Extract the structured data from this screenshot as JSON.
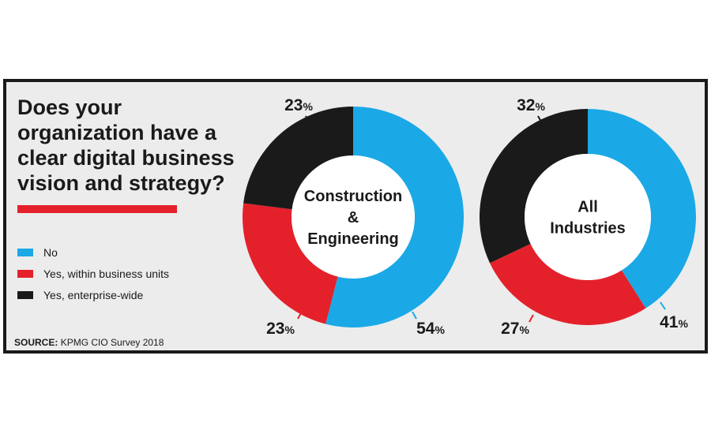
{
  "title": "Does your organization have a clear digital business vision and strategy?",
  "legend": [
    {
      "label": "No",
      "color": "#1aa9e6"
    },
    {
      "label": "Yes, within business units",
      "color": "#e4212b"
    },
    {
      "label": "Yes, enterprise-wide",
      "color": "#1a1a1a"
    }
  ],
  "source": {
    "label": "SOURCE:",
    "text": "KPMG CIO Survey 2018"
  },
  "chart_data": [
    {
      "type": "pie",
      "title": "Construction & Engineering",
      "title_lines": [
        "Construction",
        "&",
        "Engineering"
      ],
      "categories": [
        "No",
        "Yes, within business units",
        "Yes, enterprise-wide"
      ],
      "values": [
        54,
        23,
        23
      ],
      "labels": [
        "54",
        "23",
        "23"
      ],
      "unit": "%",
      "colors": [
        "#1aa9e6",
        "#e4212b",
        "#1a1a1a"
      ]
    },
    {
      "type": "pie",
      "title": "All Industries",
      "title_lines": [
        "All",
        "Industries"
      ],
      "categories": [
        "No",
        "Yes, within business units",
        "Yes, enterprise-wide"
      ],
      "values": [
        41,
        27,
        32
      ],
      "labels": [
        "41",
        "27",
        "32"
      ],
      "unit": "%",
      "colors": [
        "#1aa9e6",
        "#e4212b",
        "#1a1a1a"
      ]
    }
  ]
}
